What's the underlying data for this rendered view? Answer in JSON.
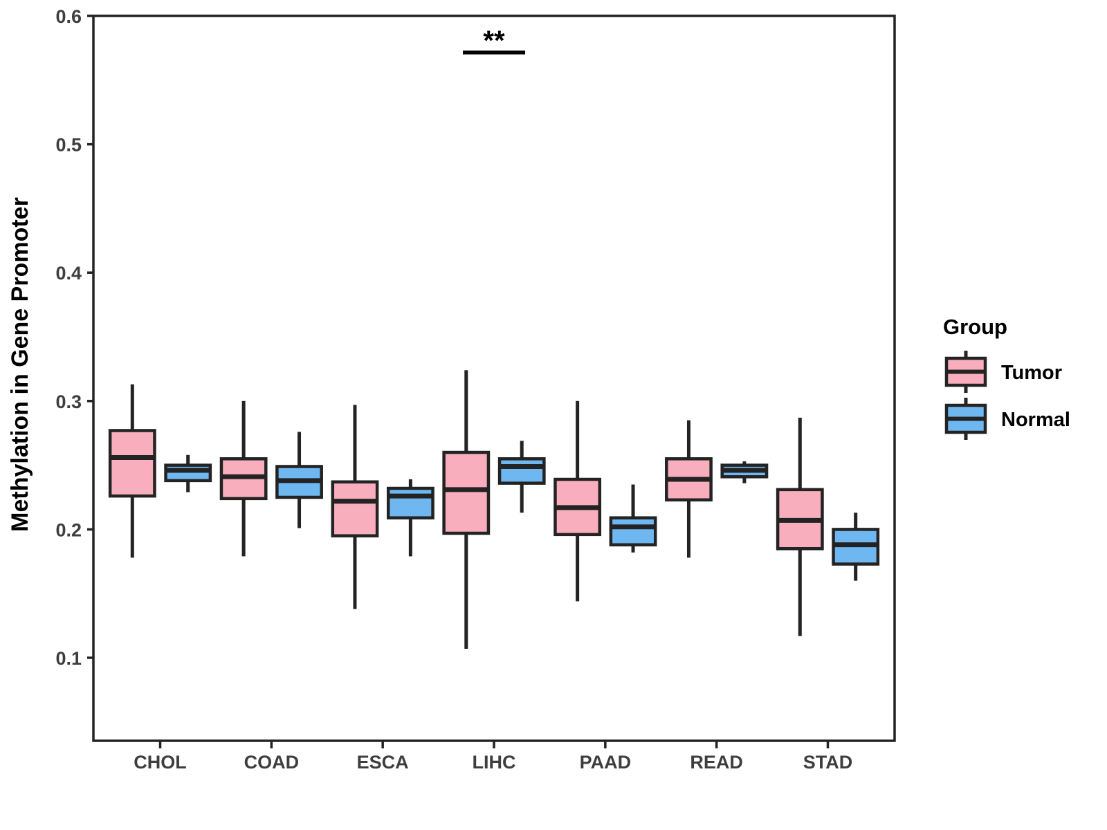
{
  "page": {
    "background": "#ffffff"
  },
  "axes": {
    "ylabel": "Methylation in Gene Promoter",
    "xlabel": ""
  },
  "legend": {
    "title": "Group",
    "items": [
      {
        "label": "Tumor",
        "color": "#F9AEBE"
      },
      {
        "label": "Normal",
        "color": "#6FB7F0"
      }
    ]
  },
  "chart_data": {
    "type": "boxplot",
    "title": "",
    "xlabel": "",
    "ylabel": "Methylation in Gene Promoter",
    "grid": false,
    "legend_position": "right",
    "ylim": [
      0.035,
      0.602
    ],
    "yticks": [
      {
        "value": 0.1,
        "label": "0.1"
      },
      {
        "value": 0.2,
        "label": "0.2"
      },
      {
        "value": 0.3,
        "label": "0.3"
      },
      {
        "value": 0.4,
        "label": "0.4"
      },
      {
        "value": 0.5,
        "label": "0.5"
      },
      {
        "value": 0.6,
        "label": "0.6"
      }
    ],
    "categories": [
      "CHOL",
      "COAD",
      "ESCA",
      "LIHC",
      "PAAD",
      "READ",
      "STAD"
    ],
    "series": [
      {
        "name": "Tumor",
        "fill": "#F9AEBE",
        "stroke": "#232323",
        "boxes": [
          {
            "category": "CHOL",
            "whisker_low": 0.178,
            "q1": 0.226,
            "median": 0.256,
            "q3": 0.277,
            "whisker_high": 0.313
          },
          {
            "category": "COAD",
            "whisker_low": 0.179,
            "q1": 0.224,
            "median": 0.241,
            "q3": 0.255,
            "whisker_high": 0.3
          },
          {
            "category": "ESCA",
            "whisker_low": 0.138,
            "q1": 0.195,
            "median": 0.222,
            "q3": 0.237,
            "whisker_high": 0.297
          },
          {
            "category": "LIHC",
            "whisker_low": 0.107,
            "q1": 0.197,
            "median": 0.231,
            "q3": 0.26,
            "whisker_high": 0.324
          },
          {
            "category": "PAAD",
            "whisker_low": 0.144,
            "q1": 0.196,
            "median": 0.217,
            "q3": 0.239,
            "whisker_high": 0.3
          },
          {
            "category": "READ",
            "whisker_low": 0.178,
            "q1": 0.223,
            "median": 0.239,
            "q3": 0.255,
            "whisker_high": 0.285
          },
          {
            "category": "STAD",
            "whisker_low": 0.117,
            "q1": 0.185,
            "median": 0.207,
            "q3": 0.231,
            "whisker_high": 0.287
          }
        ]
      },
      {
        "name": "Normal",
        "fill": "#6FB7F0",
        "stroke": "#232323",
        "boxes": [
          {
            "category": "CHOL",
            "whisker_low": 0.229,
            "q1": 0.238,
            "median": 0.246,
            "q3": 0.25,
            "whisker_high": 0.258
          },
          {
            "category": "COAD",
            "whisker_low": 0.201,
            "q1": 0.225,
            "median": 0.238,
            "q3": 0.249,
            "whisker_high": 0.276
          },
          {
            "category": "ESCA",
            "whisker_low": 0.179,
            "q1": 0.209,
            "median": 0.226,
            "q3": 0.232,
            "whisker_high": 0.239
          },
          {
            "category": "LIHC",
            "whisker_low": 0.213,
            "q1": 0.236,
            "median": 0.249,
            "q3": 0.255,
            "whisker_high": 0.269
          },
          {
            "category": "PAAD",
            "whisker_low": 0.182,
            "q1": 0.188,
            "median": 0.202,
            "q3": 0.209,
            "whisker_high": 0.235
          },
          {
            "category": "READ",
            "whisker_low": 0.236,
            "q1": 0.241,
            "median": 0.246,
            "q3": 0.25,
            "whisker_high": 0.253
          },
          {
            "category": "STAD",
            "whisker_low": 0.16,
            "q1": 0.173,
            "median": 0.188,
            "q3": 0.2,
            "whisker_high": 0.213
          }
        ]
      }
    ],
    "annotation": {
      "text": "**",
      "category": "LIHC",
      "bar_value": 0.5715,
      "bar_half_width_units": 0.28
    }
  }
}
